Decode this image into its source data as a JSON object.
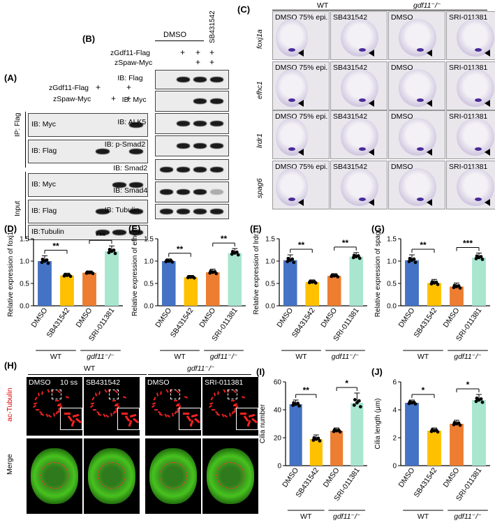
{
  "panel_labels": {
    "a": "(A)",
    "b": "(B)",
    "c": "(C)",
    "d": "(D)",
    "e": "(E)",
    "f": "(F)",
    "g": "(G)",
    "h": "(H)",
    "i": "(I)",
    "j": "(J)"
  },
  "panel_a": {
    "cond_labels": [
      "zGdf11-Flag",
      "zSpaw-Myc"
    ],
    "marks": [
      [
        "+",
        "",
        "+"
      ],
      [
        "",
        "+",
        "+"
      ]
    ],
    "ip_label": "IP: Flag",
    "input_label": "Input",
    "rows": [
      "IB: Myc",
      "IB: Flag",
      "IB: Myc",
      "IB: Flag",
      "IB:Tubulin"
    ]
  },
  "panel_b": {
    "dmso": "DMSO",
    "sb": "SB431542",
    "cond_labels": [
      "zGdf11-Flag",
      "zSpaw-Myc"
    ],
    "marks": [
      [
        "+",
        "+",
        "+"
      ],
      [
        "",
        "+",
        "+"
      ]
    ],
    "rows": [
      "IB: Flag",
      "IB: Myc",
      "IB: ALK5",
      "IB: p-Smad2",
      "IB: Smad2",
      "IB: Smad4",
      "IB: Tubulin"
    ]
  },
  "panel_c": {
    "wt": "WT",
    "mut": "gdf11⁻/⁻",
    "genes": [
      "foxj1a",
      "efhc1",
      "lrdr1",
      "spag6"
    ],
    "cols": [
      [
        "DMSO  75% epi.",
        "SB431542",
        "DMSO",
        "SRI-011381"
      ],
      [
        "DMSO  75% epi.",
        "SB431542",
        "DMSO",
        "SRI-011381"
      ],
      [
        "DMSO  75% epi.",
        "SB431542",
        "DMSO",
        "SRI-011381"
      ],
      [
        "DMSO  75% epi.",
        "SB431542",
        "DMSO",
        "SRI-011381"
      ]
    ]
  },
  "panel_h": {
    "wt": "WT",
    "mut": "gdf11⁻/⁻",
    "row1": "ac-Tubulin",
    "row2": "Merge",
    "titles": [
      "DMSO",
      "SB431542",
      "DMSO",
      "SRI-011381"
    ],
    "stage": "10 ss"
  },
  "colors": {
    "dmso_wt": "#4472c4",
    "sb": "#ffc000",
    "dmso_mut": "#ed7d31",
    "sri": "#a8e6cf"
  },
  "chart_data": [
    {
      "panel": "D",
      "type": "bar",
      "categories": [
        "DMSO",
        "SB431542",
        "DMSO",
        "SRI-011381"
      ],
      "groups": [
        "WT",
        "gdf11⁻/⁻"
      ],
      "values": [
        1.0,
        0.68,
        0.74,
        1.22
      ],
      "errors": [
        0.12,
        0.05,
        0.04,
        0.12
      ],
      "ylabel": "Relative expression of foxj1a",
      "ylim": [
        0,
        1.5
      ],
      "yticks": [
        "0.0",
        "0.5",
        "1.0",
        "1.5"
      ],
      "significance": [
        {
          "pair": [
            0,
            1
          ],
          "label": "**"
        },
        {
          "pair": [
            2,
            3
          ],
          "label": "***"
        }
      ]
    },
    {
      "panel": "E",
      "type": "bar",
      "categories": [
        "DMSO",
        "SB431542",
        "DMSO",
        "SRI-011381"
      ],
      "groups": [
        "WT",
        "gdf11⁻/⁻"
      ],
      "values": [
        1.0,
        0.64,
        0.75,
        1.18
      ],
      "errors": [
        0.05,
        0.04,
        0.07,
        0.1
      ],
      "ylabel": "Relative expression of efhc1",
      "ylim": [
        0,
        1.5
      ],
      "yticks": [
        "0.0",
        "0.5",
        "1.0",
        "1.5"
      ],
      "significance": [
        {
          "pair": [
            0,
            1
          ],
          "label": "**"
        },
        {
          "pair": [
            2,
            3
          ],
          "label": "**"
        }
      ]
    },
    {
      "panel": "F",
      "type": "bar",
      "categories": [
        "DMSO",
        "SB431542",
        "DMSO",
        "SRI-011381"
      ],
      "groups": [
        "WT",
        "gdf11⁻/⁻"
      ],
      "values": [
        1.02,
        0.53,
        0.67,
        1.1
      ],
      "errors": [
        0.12,
        0.05,
        0.05,
        0.09
      ],
      "ylabel": "Relative expression of lrdr1",
      "ylim": [
        0,
        1.5
      ],
      "yticks": [
        "0.0",
        "0.5",
        "1.0",
        "1.5"
      ],
      "significance": [
        {
          "pair": [
            0,
            1
          ],
          "label": "**"
        },
        {
          "pair": [
            2,
            3
          ],
          "label": "**"
        }
      ]
    },
    {
      "panel": "G",
      "type": "bar",
      "categories": [
        "DMSO",
        "SB431542",
        "DMSO",
        "SRI-011381"
      ],
      "groups": [
        "WT",
        "gdf11⁻/⁻"
      ],
      "values": [
        1.02,
        0.51,
        0.43,
        1.08
      ],
      "errors": [
        0.12,
        0.08,
        0.08,
        0.1
      ],
      "ylabel": "Relative expression of spag6",
      "ylim": [
        0,
        1.5
      ],
      "yticks": [
        "0.0",
        "0.5",
        "1.0",
        "1.5"
      ],
      "significance": [
        {
          "pair": [
            0,
            1
          ],
          "label": "**"
        },
        {
          "pair": [
            2,
            3
          ],
          "label": "***"
        }
      ]
    },
    {
      "panel": "I",
      "type": "bar",
      "categories": [
        "DMSO",
        "SB431542",
        "DMSO",
        "SRI-011381"
      ],
      "groups": [
        "WT",
        "gdf11⁻/⁻"
      ],
      "values": [
        44,
        19,
        25,
        45
      ],
      "errors": [
        3,
        3,
        2,
        7
      ],
      "ylabel": "Cilia number",
      "ylim": [
        0,
        60
      ],
      "yticks": [
        "0",
        "20",
        "40",
        "60"
      ],
      "significance": [
        {
          "pair": [
            0,
            1
          ],
          "label": "**"
        },
        {
          "pair": [
            2,
            3
          ],
          "label": "*"
        }
      ]
    },
    {
      "panel": "J",
      "type": "bar",
      "categories": [
        "DMSO",
        "SB431542",
        "DMSO",
        "SRI-011381"
      ],
      "groups": [
        "WT",
        "gdf11⁻/⁻"
      ],
      "values": [
        4.5,
        2.5,
        3.0,
        4.7
      ],
      "errors": [
        0.2,
        0.2,
        0.25,
        0.4
      ],
      "ylabel": "Cilia length (μm)",
      "ylim": [
        0,
        6
      ],
      "yticks": [
        "0",
        "2",
        "4",
        "6"
      ],
      "significance": [
        {
          "pair": [
            0,
            1
          ],
          "label": "*"
        },
        {
          "pair": [
            2,
            3
          ],
          "label": "*"
        }
      ]
    }
  ]
}
